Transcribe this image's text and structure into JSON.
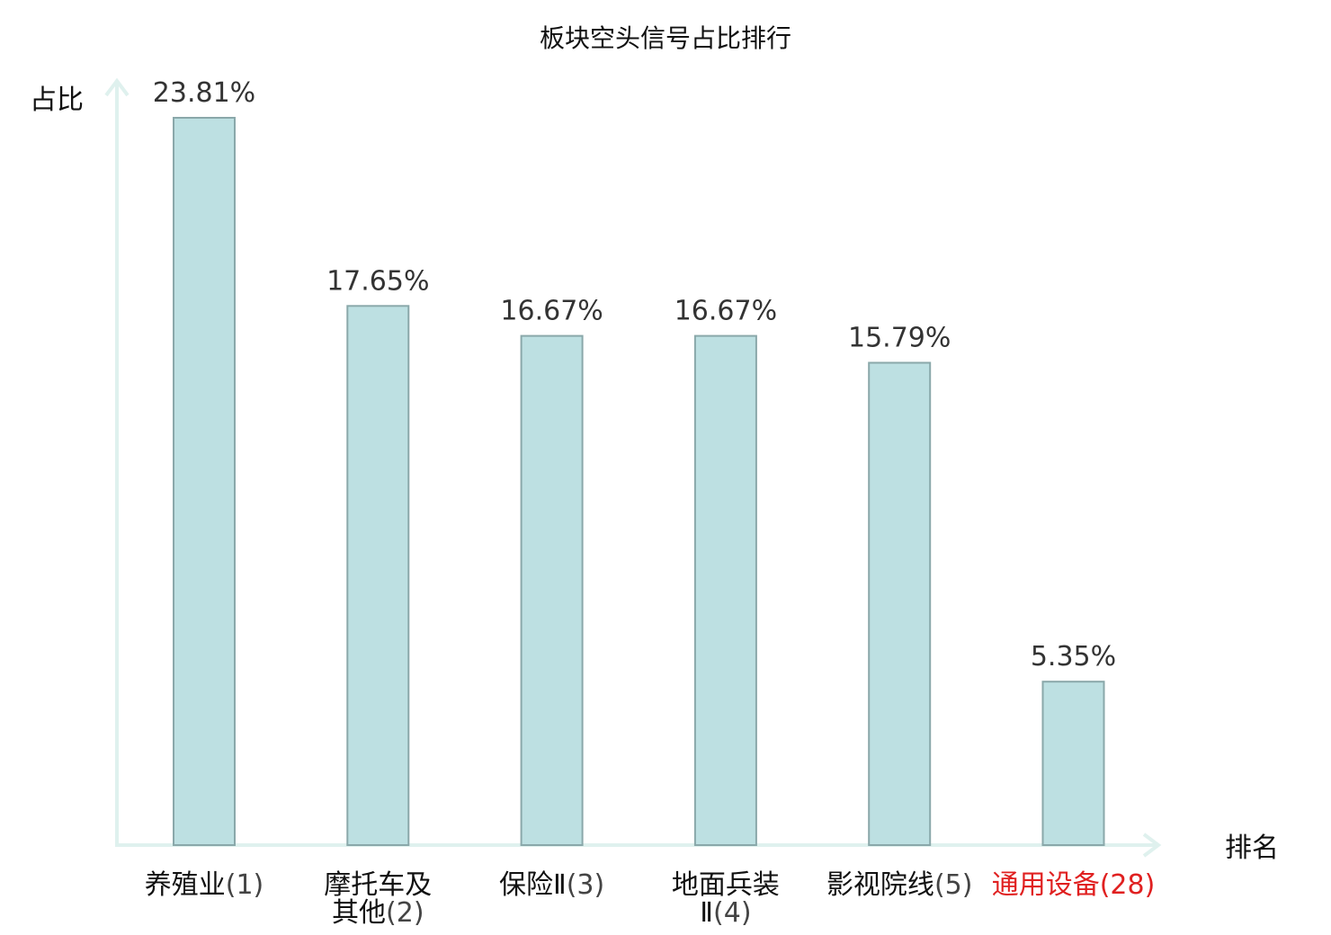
{
  "chart_data": {
    "type": "bar",
    "title": "板块空头信号占比排行",
    "xlabel": "排名",
    "ylabel": "占比",
    "ylim": [
      0,
      25
    ],
    "grid": false,
    "categories": [
      {
        "lines": [
          "养殖业"
        ],
        "rank": "(1)",
        "highlight": false
      },
      {
        "lines": [
          "摩托车及",
          "其他"
        ],
        "rank": "(2)",
        "highlight": false
      },
      {
        "lines": [
          "保险Ⅱ"
        ],
        "rank": "(3)",
        "highlight": false
      },
      {
        "lines": [
          "地面兵装",
          "Ⅱ"
        ],
        "rank": "(4)",
        "highlight": false
      },
      {
        "lines": [
          "影视院线"
        ],
        "rank": "(5)",
        "highlight": false
      },
      {
        "lines": [
          "通用设备"
        ],
        "rank": "(28)",
        "highlight": true
      }
    ],
    "values": [
      23.81,
      17.65,
      16.67,
      16.67,
      15.79,
      5.35
    ],
    "value_labels": [
      "23.81%",
      "17.65%",
      "16.67%",
      "16.67%",
      "15.79%",
      "5.35%"
    ],
    "colors": {
      "bar_fill": "#bde0e2",
      "bar_stroke": "#8aa8aa",
      "axis": "#dff1ee",
      "highlight": "#e02020"
    }
  }
}
